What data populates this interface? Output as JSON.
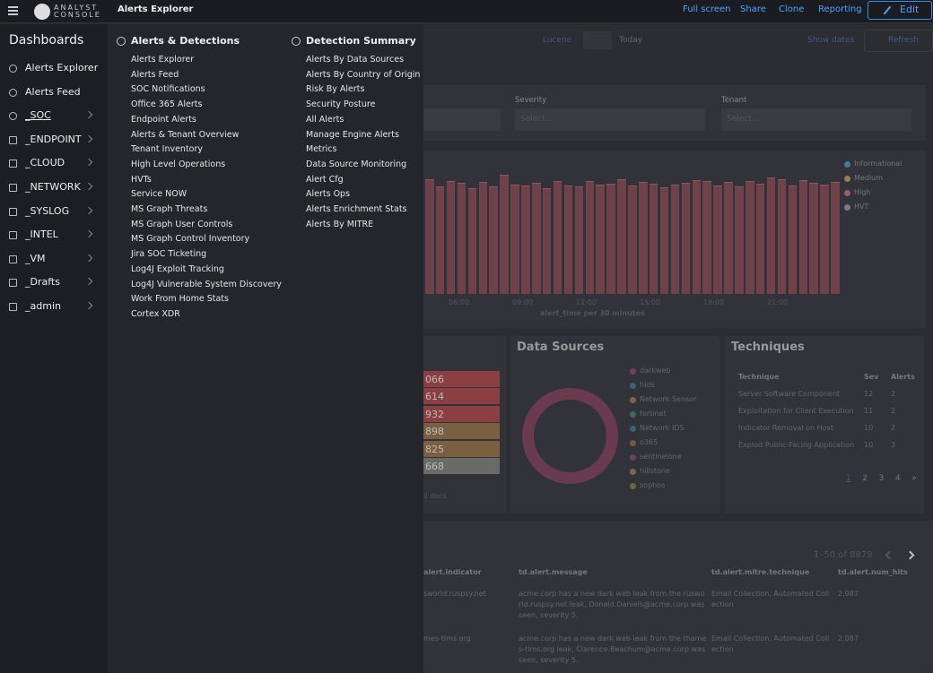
{
  "topbar": {
    "brand": "ANALYST CONSOLE",
    "breadcrumb": "Alerts Explorer",
    "actions": [
      "Full screen",
      "Share",
      "Clone",
      "Reporting"
    ],
    "edit": "Edit"
  },
  "sidebar": {
    "title": "Dashboards",
    "items": [
      "Alerts Explorer",
      "Alerts Feed",
      "_SOC",
      "_ENDPOINT",
      "_CLOUD",
      "_NETWORK",
      "_SYSLOG",
      "_INTEL",
      "_VM",
      "_Drafts",
      "_admin"
    ]
  },
  "flyout": {
    "columns": [
      {
        "heading": "Alerts & Detections",
        "links": [
          "Alerts Explorer",
          "Alerts Feed",
          "SOC Notifications",
          "Office 365 Alerts",
          "Endpoint Alerts",
          "Alerts & Tenant Overview",
          "Tenant Inventory",
          "High Level Operations",
          "HVTs",
          "Service NOW",
          "MS Graph Threats",
          "MS Graph User Controls",
          "MS Graph Control Inventory",
          "Jira SOC Ticketing",
          "Log4J Exploit Tracking",
          "Log4J Vulnerable System Discovery",
          "Work From Home Stats",
          "Cortex XDR"
        ]
      },
      {
        "heading": "Detection Summary",
        "links": [
          "Alerts By Data Sources",
          "Alerts By Country of Origin",
          "Risk By Alerts",
          "Security Posture",
          "All Alerts",
          "Manage Engine Alerts",
          "Metrics",
          "Data Source Monitoring",
          "Alert Cfg",
          "Alerts Ops",
          "Alerts Enrichment Stats",
          "Alerts By MITRE"
        ]
      }
    ]
  },
  "query": {
    "language": "Lucene",
    "range": "Today",
    "show_dates": "Show dates",
    "refresh": "Refresh"
  },
  "filters": [
    {
      "label": "Severity",
      "placeholder": "Select..."
    },
    {
      "label": "Tenant",
      "placeholder": "Select..."
    }
  ],
  "histogram": {
    "legend": [
      "Informational",
      "Medium",
      "High",
      "HVT"
    ],
    "xticks": [
      "06:00",
      "09:00",
      "12:00",
      "15:00",
      "18:00",
      "21:00"
    ],
    "xlabel": "alert_time per 30 minutes",
    "values": [
      128,
      120,
      126,
      124,
      118,
      125,
      120,
      133,
      122,
      121,
      124,
      118,
      126,
      121,
      120,
      126,
      122,
      123,
      128,
      121,
      125,
      123,
      119,
      122,
      124,
      127,
      126,
      121,
      125,
      120,
      126,
      123,
      130,
      128,
      121,
      127,
      124,
      122,
      125
    ]
  },
  "left_panel": {
    "values": [
      "066",
      "614",
      "932",
      "898",
      "825",
      "668"
    ],
    "footer": "ll docs"
  },
  "data_sources": {
    "title": "Data Sources",
    "legend": [
      "darkweb",
      "hids",
      "Network Sensor",
      "fortinet",
      "Network IDS",
      "o365",
      "sentinelone",
      "hillstone",
      "sophos"
    ]
  },
  "techniques": {
    "title": "Techniques",
    "headers": [
      "Technique",
      "Sev",
      "Alerts"
    ],
    "rows": [
      [
        "Server Software Component",
        "12",
        "2"
      ],
      [
        "Exploitation for Client Execution",
        "11",
        "2"
      ],
      [
        "Indicator Removal on Host",
        "10",
        "2"
      ],
      [
        "Exploit Public-Facing Application",
        "10",
        "3"
      ]
    ],
    "pages": [
      "1",
      "2",
      "3",
      "4",
      "»"
    ]
  },
  "docs": {
    "count": "1–50 of 8879",
    "headers": [
      "alert.indicator",
      "td.alert.message",
      "td.alert.mitre.technique",
      "td.alert.num_hits"
    ],
    "rows": [
      [
        "sworld.ruspsy.net",
        "acme.corp has a new dark web leak from the rusworld.ruspsy.net leak, Donald.Daniels@acme.corp was seen, severity 5.",
        "Email Collection, Automated Collection",
        "2,087"
      ],
      [
        "mes-tlms.org",
        "acme.corp has a new dark web leak from the thames-tlms.org leak, Clarence.Beachum@acme.corp was seen, severity 5.",
        "Email Collection, Automated Collection",
        "2,087"
      ]
    ]
  }
}
